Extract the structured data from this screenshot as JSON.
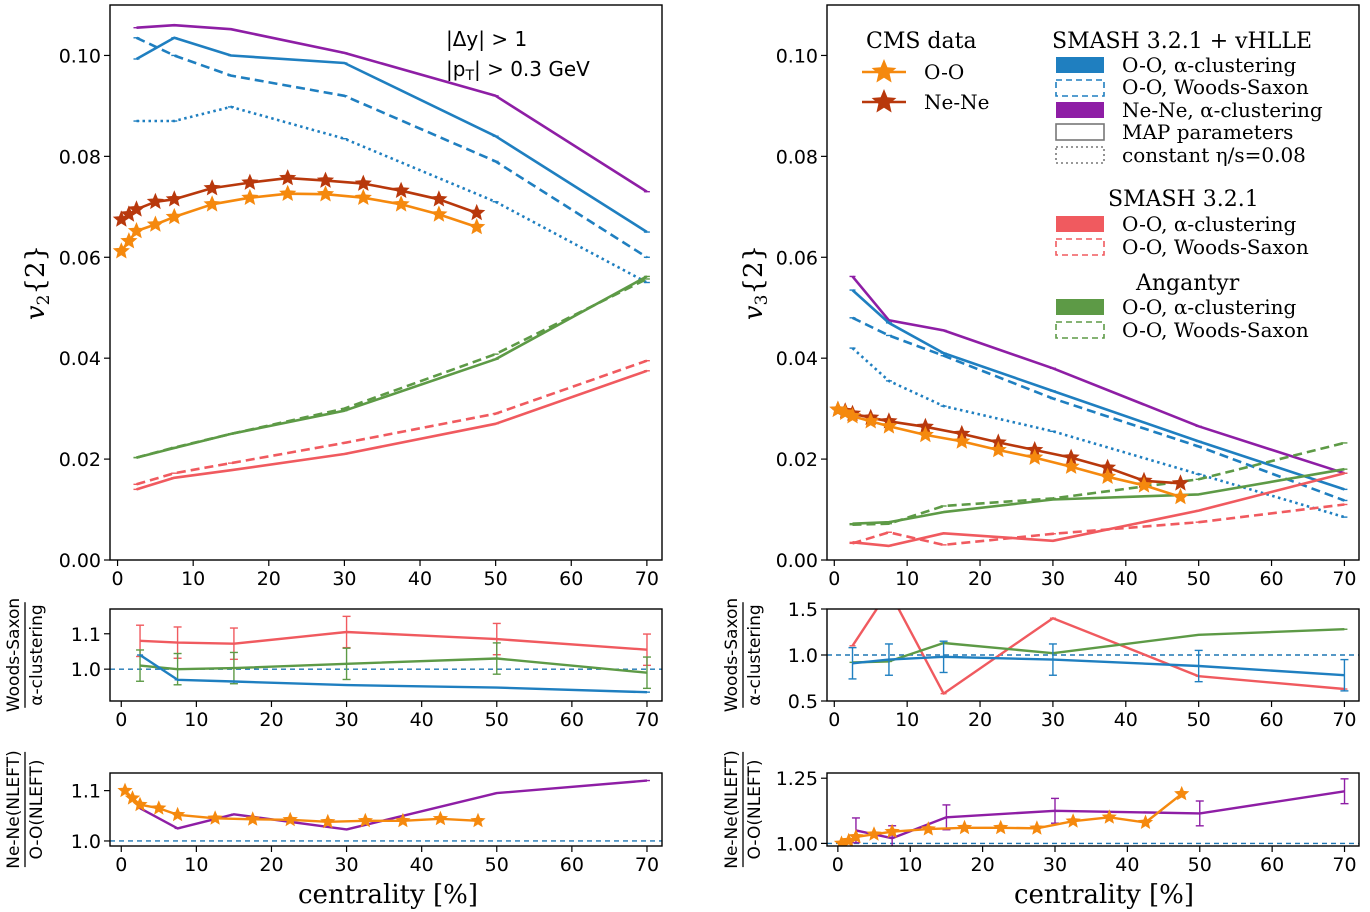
{
  "colors": {
    "blue": "#1f7fc0",
    "purple": "#8e1ea5",
    "red": "#f05a5f",
    "green": "#5d9a46",
    "orange": "#f5890e",
    "darkred": "#b8380c",
    "ref": "#1f77b4"
  },
  "annotation": {
    "line1": "|Δy| > 1",
    "line2": "|p",
    "line2_sub": "T",
    "line2_rest": "| > 0.3 GeV"
  },
  "xlabel": "centrality [%]",
  "legend": {
    "cms_title": "CMS data",
    "cms_oo": "O-O",
    "cms_nene": "Ne-Ne",
    "smash_hydro_title": "SMASH 3.2.1 + vHLLE",
    "oo_alpha": "O-O, α-clustering",
    "oo_ws": "O-O, Woods-Saxon",
    "nene_alpha": "Ne-Ne, α-clustering",
    "map": "MAP parameters",
    "const_eta": "constant η/s=0.08",
    "smash_title": "SMASH 3.2.1",
    "smash_oo_alpha": "O-O, α-clustering",
    "smash_oo_ws": "O-O, Woods-Saxon",
    "angantyr_title": "Angantyr",
    "ang_oo_alpha": "O-O, α-clustering",
    "ang_oo_ws": "O-O, Woods-Saxon"
  },
  "chart_data": [
    {
      "id": "v2",
      "type": "line",
      "ylabel": "v2{2}",
      "xlim": [
        -1,
        72
      ],
      "ylim": [
        0,
        0.11
      ],
      "xticks": [
        0,
        10,
        20,
        30,
        40,
        50,
        60,
        70
      ],
      "yticks": [
        0.0,
        0.02,
        0.04,
        0.06,
        0.08,
        0.1
      ],
      "ytick_labels": [
        "0.00",
        "0.02",
        "0.04",
        "0.06",
        "0.08",
        "0.10"
      ],
      "series": [
        {
          "key": "nene_map",
          "color": "purple",
          "dash": "solid",
          "x": [
            2.5,
            7.5,
            15,
            30,
            50,
            70
          ],
          "y": [
            0.1055,
            0.106,
            0.1052,
            0.1005,
            0.092,
            0.073
          ]
        },
        {
          "key": "oo_alpha_map",
          "color": "blue",
          "dash": "solid",
          "x": [
            2.5,
            7.5,
            15,
            30,
            50,
            70
          ],
          "y": [
            0.0993,
            0.1035,
            0.1,
            0.0985,
            0.084,
            0.065
          ]
        },
        {
          "key": "oo_ws_map",
          "color": "blue",
          "dash": "dashed",
          "x": [
            2.5,
            7.5,
            15,
            30,
            50,
            70
          ],
          "y": [
            0.1035,
            0.1,
            0.096,
            0.092,
            0.079,
            0.06
          ]
        },
        {
          "key": "oo_alpha_const",
          "color": "blue",
          "dash": "dotted",
          "x": [
            2.5,
            7.5,
            15,
            30,
            50,
            70
          ],
          "y": [
            0.087,
            0.087,
            0.0898,
            0.0835,
            0.071,
            0.055
          ]
        },
        {
          "key": "ang_alpha",
          "color": "green",
          "dash": "solid",
          "x": [
            2.5,
            7.5,
            15,
            30,
            50,
            70
          ],
          "y": [
            0.0203,
            0.0222,
            0.025,
            0.0296,
            0.0398,
            0.0562
          ]
        },
        {
          "key": "ang_ws",
          "color": "green",
          "dash": "dashed",
          "x": [
            2.5,
            7.5,
            15,
            30,
            50,
            70
          ],
          "y": [
            0.0203,
            0.0223,
            0.025,
            0.03,
            0.0408,
            0.0557
          ]
        },
        {
          "key": "smash_alpha",
          "color": "red",
          "dash": "solid",
          "x": [
            2.5,
            7.5,
            15,
            30,
            50,
            70
          ],
          "y": [
            0.014,
            0.0163,
            0.0178,
            0.021,
            0.027,
            0.0375
          ]
        },
        {
          "key": "smash_ws",
          "color": "red",
          "dash": "dashed",
          "x": [
            2.5,
            7.5,
            15,
            30,
            50,
            70
          ],
          "y": [
            0.015,
            0.0172,
            0.0192,
            0.0232,
            0.029,
            0.0395
          ]
        },
        {
          "key": "cms_nene",
          "color": "darkred",
          "dash": "solid",
          "star": true,
          "x": [
            0.5,
            1.5,
            2.5,
            5,
            7.5,
            12.5,
            17.5,
            22.5,
            27.5,
            32.5,
            37.5,
            42.5,
            47.5
          ],
          "y": [
            0.0675,
            0.0685,
            0.0695,
            0.071,
            0.0715,
            0.0737,
            0.0748,
            0.0757,
            0.0752,
            0.0746,
            0.0732,
            0.0715,
            0.0688
          ]
        },
        {
          "key": "cms_oo",
          "color": "orange",
          "dash": "solid",
          "star": true,
          "x": [
            0.5,
            1.5,
            2.5,
            5,
            7.5,
            12.5,
            17.5,
            22.5,
            27.5,
            32.5,
            37.5,
            42.5,
            47.5
          ],
          "y": [
            0.0612,
            0.0632,
            0.0652,
            0.0665,
            0.068,
            0.0705,
            0.0718,
            0.0726,
            0.0725,
            0.0718,
            0.0705,
            0.0685,
            0.066
          ]
        }
      ]
    },
    {
      "id": "v3",
      "type": "line",
      "ylabel": "v3{2}",
      "xlim": [
        -1,
        72
      ],
      "ylim": [
        0,
        0.11
      ],
      "xticks": [
        0,
        10,
        20,
        30,
        40,
        50,
        60,
        70
      ],
      "yticks": [
        0.0,
        0.02,
        0.04,
        0.06,
        0.08,
        0.1
      ],
      "ytick_labels": [
        "0.00",
        "0.02",
        "0.04",
        "0.06",
        "0.08",
        "0.10"
      ],
      "series": [
        {
          "key": "nene_map",
          "color": "purple",
          "dash": "solid",
          "x": [
            2.5,
            7.5,
            15,
            30,
            50,
            70
          ],
          "y": [
            0.0562,
            0.0475,
            0.0455,
            0.038,
            0.0265,
            0.0172
          ]
        },
        {
          "key": "oo_alpha_map",
          "color": "blue",
          "dash": "solid",
          "x": [
            2.5,
            7.5,
            15,
            30,
            50,
            70
          ],
          "y": [
            0.0535,
            0.047,
            0.041,
            0.0335,
            0.0235,
            0.014
          ]
        },
        {
          "key": "oo_ws_map",
          "color": "blue",
          "dash": "dashed",
          "x": [
            2.5,
            7.5,
            15,
            30,
            50,
            70
          ],
          "y": [
            0.048,
            0.0445,
            0.0405,
            0.032,
            0.0225,
            0.0118
          ]
        },
        {
          "key": "oo_alpha_const",
          "color": "blue",
          "dash": "dotted",
          "x": [
            2.5,
            7.5,
            15,
            30,
            50,
            70
          ],
          "y": [
            0.042,
            0.0355,
            0.0305,
            0.0255,
            0.017,
            0.0085
          ]
        },
        {
          "key": "ang_alpha",
          "color": "green",
          "dash": "solid",
          "x": [
            2.5,
            7.5,
            15,
            30,
            50,
            70
          ],
          "y": [
            0.0072,
            0.0075,
            0.0095,
            0.012,
            0.013,
            0.018
          ]
        },
        {
          "key": "ang_ws",
          "color": "green",
          "dash": "dashed",
          "x": [
            2.5,
            7.5,
            15,
            30,
            50,
            70
          ],
          "y": [
            0.007,
            0.0072,
            0.0107,
            0.0122,
            0.016,
            0.0232
          ]
        },
        {
          "key": "smash_alpha",
          "color": "red",
          "dash": "solid",
          "x": [
            2.5,
            7.5,
            15,
            30,
            50,
            70
          ],
          "y": [
            0.0035,
            0.0028,
            0.0053,
            0.0038,
            0.0098,
            0.0172
          ]
        },
        {
          "key": "smash_ws",
          "color": "red",
          "dash": "dashed",
          "x": [
            2.5,
            7.5,
            15,
            30,
            50,
            70
          ],
          "y": [
            0.0033,
            0.0055,
            0.003,
            0.0052,
            0.0075,
            0.011
          ]
        },
        {
          "key": "cms_nene",
          "color": "darkred",
          "dash": "solid",
          "star": true,
          "x": [
            0.5,
            1.5,
            2.5,
            5,
            7.5,
            12.5,
            17.5,
            22.5,
            27.5,
            32.5,
            37.5,
            42.5,
            47.5
          ],
          "y": [
            0.0298,
            0.0295,
            0.029,
            0.0282,
            0.0275,
            0.0264,
            0.025,
            0.0233,
            0.0218,
            0.0203,
            0.0183,
            0.0157,
            0.0152
          ]
        },
        {
          "key": "cms_oo",
          "color": "orange",
          "dash": "solid",
          "star": true,
          "x": [
            0.5,
            1.5,
            2.5,
            5,
            7.5,
            12.5,
            17.5,
            22.5,
            27.5,
            32.5,
            37.5,
            42.5,
            47.5
          ],
          "y": [
            0.0298,
            0.0292,
            0.0285,
            0.0275,
            0.0265,
            0.0248,
            0.0235,
            0.0218,
            0.0203,
            0.0185,
            0.0165,
            0.0148,
            0.0125
          ]
        }
      ]
    },
    {
      "id": "ratio_ws_left",
      "type": "line",
      "ylabel_num": "Woods-Saxon",
      "ylabel_den": "α-clustering",
      "xlim": [
        -1.5,
        72
      ],
      "ylim": [
        0.91,
        1.17
      ],
      "xticks": [
        0,
        10,
        20,
        30,
        40,
        50,
        60,
        70
      ],
      "yticks": [
        1.0,
        1.1
      ],
      "ytick_labels": [
        "1.0",
        "1.1"
      ],
      "refline": 1.0,
      "series": [
        {
          "key": "smash",
          "color": "red",
          "dash": "solid",
          "err": true,
          "x": [
            2.5,
            7.5,
            15,
            30,
            50,
            70
          ],
          "y": [
            1.08,
            1.075,
            1.072,
            1.105,
            1.085,
            1.055
          ]
        },
        {
          "key": "ang",
          "color": "green",
          "dash": "solid",
          "err": true,
          "x": [
            2.5,
            7.5,
            15,
            30,
            50,
            70
          ],
          "y": [
            1.01,
            1.0,
            1.003,
            1.015,
            1.03,
            0.99
          ]
        },
        {
          "key": "hydro",
          "color": "blue",
          "dash": "solid",
          "x": [
            2.5,
            7.5,
            15,
            30,
            50,
            70
          ],
          "y": [
            1.04,
            0.97,
            0.965,
            0.955,
            0.948,
            0.935
          ]
        }
      ]
    },
    {
      "id": "ratio_ws_right",
      "type": "line",
      "ylabel_num": "Woods-Saxon",
      "ylabel_den": "α-clustering",
      "xlim": [
        -1,
        72
      ],
      "ylim": [
        0.5,
        1.5
      ],
      "xticks": [
        0,
        10,
        20,
        30,
        40,
        50,
        60,
        70
      ],
      "yticks": [
        0.5,
        1.0,
        1.5
      ],
      "ytick_labels": [
        "0.5",
        "1.0",
        "1.5"
      ],
      "refline": 1.0,
      "series": [
        {
          "key": "smash",
          "color": "red",
          "dash": "solid",
          "x": [
            2.5,
            7.5,
            15,
            30,
            50,
            70
          ],
          "y": [
            1.1,
            1.7,
            0.58,
            1.4,
            0.77,
            0.63
          ]
        },
        {
          "key": "ang",
          "color": "green",
          "dash": "solid",
          "x": [
            2.5,
            7.5,
            15,
            30,
            50,
            70
          ],
          "y": [
            0.92,
            0.93,
            1.13,
            1.02,
            1.22,
            1.28
          ]
        },
        {
          "key": "hydro",
          "color": "blue",
          "dash": "solid",
          "err": true,
          "x": [
            2.5,
            7.5,
            15,
            30,
            50,
            70
          ],
          "y": [
            0.91,
            0.95,
            0.98,
            0.95,
            0.88,
            0.78
          ]
        }
      ]
    },
    {
      "id": "ratio_nene_left",
      "type": "line",
      "ylabel_num": "Ne-Ne(NLEFT)",
      "ylabel_den": "O-O(NLEFT)",
      "xlim": [
        -1.5,
        72
      ],
      "ylim": [
        0.99,
        1.135
      ],
      "xticks": [
        0,
        10,
        20,
        30,
        40,
        50,
        60,
        70
      ],
      "yticks": [
        1.0,
        1.1
      ],
      "ytick_labels": [
        "1.0",
        "1.1"
      ],
      "refline": 1.0,
      "series": [
        {
          "key": "hydro",
          "color": "purple",
          "dash": "solid",
          "x": [
            2.5,
            7.5,
            15,
            30,
            50,
            70
          ],
          "y": [
            1.065,
            1.025,
            1.053,
            1.023,
            1.095,
            1.12
          ]
        },
        {
          "key": "cms",
          "color": "orange",
          "dash": "solid",
          "star": true,
          "x": [
            0.5,
            1.5,
            2.5,
            5,
            7.5,
            12.5,
            17.5,
            22.5,
            27.5,
            32.5,
            37.5,
            42.5,
            47.5
          ],
          "y": [
            1.1,
            1.085,
            1.072,
            1.065,
            1.052,
            1.045,
            1.043,
            1.042,
            1.038,
            1.04,
            1.04,
            1.044,
            1.04
          ]
        }
      ]
    },
    {
      "id": "ratio_nene_right",
      "type": "line",
      "ylabel_num": "Ne-Ne(NLEFT)",
      "ylabel_den": "O-O(NLEFT)",
      "xlim": [
        -1.5,
        72
      ],
      "ylim": [
        0.99,
        1.27
      ],
      "xticks": [
        0,
        10,
        20,
        30,
        40,
        50,
        60,
        70
      ],
      "yticks": [
        1.0,
        1.25
      ],
      "ytick_labels": [
        "1.00",
        "1.25"
      ],
      "refline": 1.0,
      "series": [
        {
          "key": "hydro",
          "color": "purple",
          "dash": "solid",
          "err": true,
          "x": [
            2.5,
            7.5,
            15,
            30,
            50,
            70
          ],
          "y": [
            1.05,
            1.02,
            1.1,
            1.125,
            1.115,
            1.2
          ]
        },
        {
          "key": "cms",
          "color": "orange",
          "dash": "solid",
          "star": true,
          "x": [
            0.5,
            1.5,
            2.5,
            5,
            7.5,
            12.5,
            17.5,
            22.5,
            27.5,
            32.5,
            37.5,
            42.5,
            47.5
          ],
          "y": [
            1.0,
            1.01,
            1.025,
            1.035,
            1.045,
            1.055,
            1.06,
            1.06,
            1.058,
            1.085,
            1.1,
            1.08,
            1.19
          ]
        }
      ]
    }
  ]
}
